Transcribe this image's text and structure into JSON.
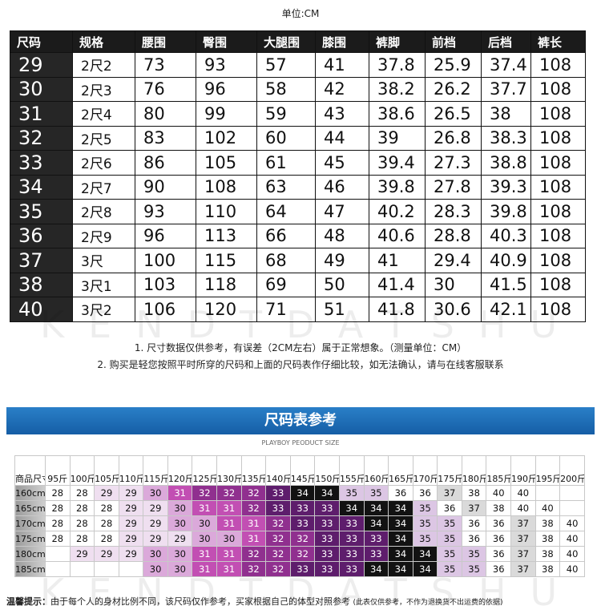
{
  "unit": "单位:CM",
  "size_table": {
    "header": [
      "尺码",
      "规格",
      "腰围",
      "臀围",
      "大腿围",
      "膝围",
      "裤脚",
      "前档",
      "后档",
      "裤长"
    ],
    "rows": [
      [
        29,
        "2尺2",
        73,
        93,
        57,
        41,
        37.8,
        25.9,
        37.4,
        108
      ],
      [
        30,
        "2尺3",
        76,
        96,
        58,
        42,
        38.2,
        26.2,
        37.7,
        108
      ],
      [
        31,
        "2尺4",
        80,
        99,
        59,
        43,
        38.6,
        26.5,
        38,
        108
      ],
      [
        32,
        "2尺5",
        83,
        102,
        60,
        44,
        39,
        26.8,
        38.3,
        108
      ],
      [
        33,
        "2尺6",
        86,
        105,
        61,
        45,
        39.4,
        27.3,
        38.8,
        108
      ],
      [
        34,
        "2尺7",
        90,
        108,
        63,
        46,
        39.8,
        27.8,
        39.3,
        108
      ],
      [
        35,
        "2尺8",
        93,
        110,
        64,
        47,
        40.2,
        28.3,
        39.8,
        108
      ],
      [
        36,
        "2尺9",
        96,
        113,
        66,
        48,
        40.6,
        28.8,
        40.3,
        108
      ],
      [
        37,
        "3尺",
        100,
        115,
        68,
        49,
        41,
        29.4,
        40.9,
        108
      ],
      [
        38,
        "3尺1",
        103,
        118,
        69,
        50,
        41.4,
        30,
        41.5,
        108
      ],
      [
        40,
        "3尺2",
        106,
        120,
        71,
        51,
        41.8,
        30.6,
        42.1,
        108
      ]
    ]
  },
  "watermark": "KENDTDATSHU",
  "notes": [
    "1. 尺寸数据仅供参考，有误差（2CM左右）属于正常想象。（测量单位：CM）",
    "2. 购买是轻您按照平时所穿的尺码和上面的尺码表作仔细比较，如无法确认，请与在线客服联系"
  ],
  "reference": {
    "title": "尺码表参考",
    "subtitle": "PLAYBOY PEODUCT SIZE",
    "corner": "商品尺寸",
    "weights": [
      "95斤",
      "100斤",
      "105斤",
      "110斤",
      "115斤",
      "120斤",
      "125斤",
      "130斤",
      "135斤",
      "140斤",
      "145斤",
      "150斤",
      "155斤",
      "160斤",
      "165斤",
      "170斤",
      "175斤",
      "180斤",
      "185斤",
      "190斤",
      "195斤",
      "200斤"
    ],
    "rows": [
      {
        "height": "160cm",
        "sizes": [
          28,
          28,
          29,
          29,
          30,
          31,
          32,
          32,
          32,
          33,
          34,
          34,
          35,
          35,
          36,
          36,
          37,
          38,
          40,
          40,
          null,
          null
        ]
      },
      {
        "height": "165cm",
        "sizes": [
          28,
          28,
          28,
          29,
          29,
          30,
          31,
          31,
          32,
          33,
          33,
          33,
          34,
          34,
          34,
          35,
          36,
          37,
          38,
          40,
          40,
          null
        ]
      },
      {
        "height": "170cm",
        "sizes": [
          28,
          28,
          28,
          29,
          29,
          30,
          30,
          31,
          31,
          32,
          33,
          33,
          33,
          34,
          34,
          35,
          35,
          36,
          36,
          37,
          38,
          40
        ]
      },
      {
        "height": "175cm",
        "sizes": [
          28,
          28,
          28,
          29,
          29,
          29,
          30,
          30,
          31,
          32,
          32,
          33,
          33,
          33,
          34,
          35,
          35,
          36,
          36,
          37,
          38,
          40
        ]
      },
      {
        "height": "180cm",
        "sizes": [
          null,
          29,
          29,
          29,
          30,
          30,
          31,
          31,
          32,
          32,
          32,
          33,
          33,
          33,
          34,
          34,
          35,
          35,
          36,
          37,
          38,
          40
        ]
      },
      {
        "height": "185cm",
        "sizes": [
          null,
          null,
          null,
          null,
          30,
          30,
          31,
          31,
          32,
          32,
          33,
          33,
          33,
          34,
          34,
          34,
          35,
          35,
          36,
          37,
          38,
          40
        ]
      }
    ]
  },
  "tip": {
    "label": "温馨提示：",
    "text": "由于每个人的身材比例不同，该尺码仅作参考，买家根据自己的体型对照参考",
    "note": "(此表仅供参考，不作为退换货不出运费的依据)"
  }
}
